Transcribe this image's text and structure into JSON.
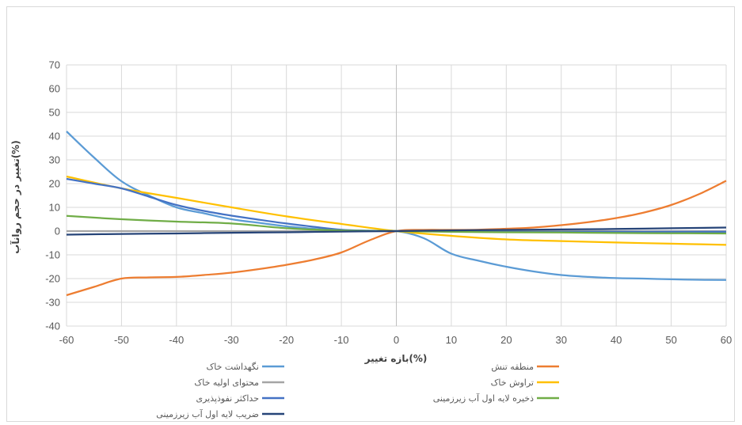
{
  "chart_data": {
    "type": "line",
    "title": "",
    "xlabel": "بازه تغییر(%)",
    "ylabel": "تغییر در حجم روانآب(%)",
    "xlim": [
      -60,
      60
    ],
    "ylim": [
      -40,
      70
    ],
    "xticks": [
      -60,
      -50,
      -40,
      -30,
      -20,
      -10,
      0,
      10,
      20,
      30,
      40,
      50,
      60
    ],
    "yticks": [
      -40,
      -30,
      -20,
      -10,
      0,
      10,
      20,
      30,
      40,
      50,
      60,
      70
    ],
    "grid": true,
    "legend_position": "bottom",
    "series": [
      {
        "name": "نگهداشت خاک",
        "color": "#5b9bd5",
        "x": [
          -60,
          -55,
          -50,
          -45,
          -40,
          -35,
          -30,
          -25,
          -20,
          -15,
          -10,
          -5,
          0,
          5,
          10,
          15,
          20,
          25,
          30,
          35,
          40,
          45,
          50,
          55,
          60
        ],
        "y": [
          42,
          31,
          21,
          15,
          10,
          7.5,
          5,
          3.5,
          2,
          1,
          0.2,
          0,
          0,
          -3,
          -9.5,
          -12.5,
          -15,
          -17,
          -18.5,
          -19.3,
          -19.8,
          -20,
          -20.3,
          -20.5,
          -20.6
        ]
      },
      {
        "name": "منطقه تنش",
        "color": "#ed7d31",
        "x": [
          -60,
          -55,
          -50,
          -45,
          -40,
          -35,
          -30,
          -25,
          -20,
          -15,
          -10,
          -5,
          0,
          5,
          10,
          15,
          20,
          25,
          30,
          35,
          40,
          45,
          50,
          55,
          60
        ],
        "y": [
          -27,
          -23.5,
          -20,
          -19.5,
          -19.3,
          -18.5,
          -17.5,
          -16,
          -14.2,
          -12,
          -9,
          -4,
          0,
          0.5,
          0.5,
          0.6,
          1,
          1.5,
          2.5,
          3.8,
          5.5,
          7.8,
          11,
          15.5,
          21.2
        ]
      },
      {
        "name": "محتوای اولیه خاک",
        "color": "#a5a5a5",
        "x": [
          -60,
          -40,
          -20,
          0,
          20,
          40,
          60
        ],
        "y": [
          0,
          0,
          0,
          0,
          0,
          0,
          0
        ]
      },
      {
        "name": "تراوش خاک",
        "color": "#ffc000",
        "x": [
          -60,
          -50,
          -40,
          -30,
          -20,
          -10,
          0,
          10,
          20,
          30,
          40,
          50,
          60
        ],
        "y": [
          23,
          18,
          14,
          10,
          6.2,
          3,
          0,
          -2,
          -3.5,
          -4.2,
          -4.8,
          -5.3,
          -5.8
        ]
      },
      {
        "name": "حداکثر نفوذپذیری",
        "color": "#4472c4",
        "x": [
          -60,
          -55,
          -50,
          -45,
          -40,
          -35,
          -30,
          -25,
          -20,
          -15,
          -10,
          -5,
          0,
          10,
          20,
          30,
          40,
          50,
          60
        ],
        "y": [
          22,
          20,
          18,
          14.5,
          11,
          8.5,
          6.5,
          4.8,
          3.2,
          1.8,
          0.6,
          0.2,
          0,
          -0.2,
          -0.3,
          -0.3,
          -0.3,
          -0.3,
          -0.3
        ]
      },
      {
        "name": "ذخیره لایه اول آب زیرزمینی",
        "color": "#70ad47",
        "x": [
          -60,
          -50,
          -40,
          -30,
          -20,
          -10,
          0,
          10,
          20,
          30,
          40,
          50,
          60
        ],
        "y": [
          6.4,
          5,
          4,
          3.2,
          1.2,
          0.3,
          0,
          -0.3,
          -0.5,
          -0.6,
          -0.8,
          -0.9,
          -1
        ]
      },
      {
        "name": "ضریب لایه اول آب زیرزمینی",
        "color": "#264478",
        "x": [
          -60,
          -50,
          -40,
          -30,
          -20,
          -10,
          0,
          10,
          20,
          30,
          40,
          50,
          60
        ],
        "y": [
          -1.5,
          -1.2,
          -1,
          -0.7,
          -0.5,
          -0.2,
          0,
          0.3,
          0.5,
          0.7,
          0.9,
          1.2,
          1.5
        ]
      }
    ]
  }
}
